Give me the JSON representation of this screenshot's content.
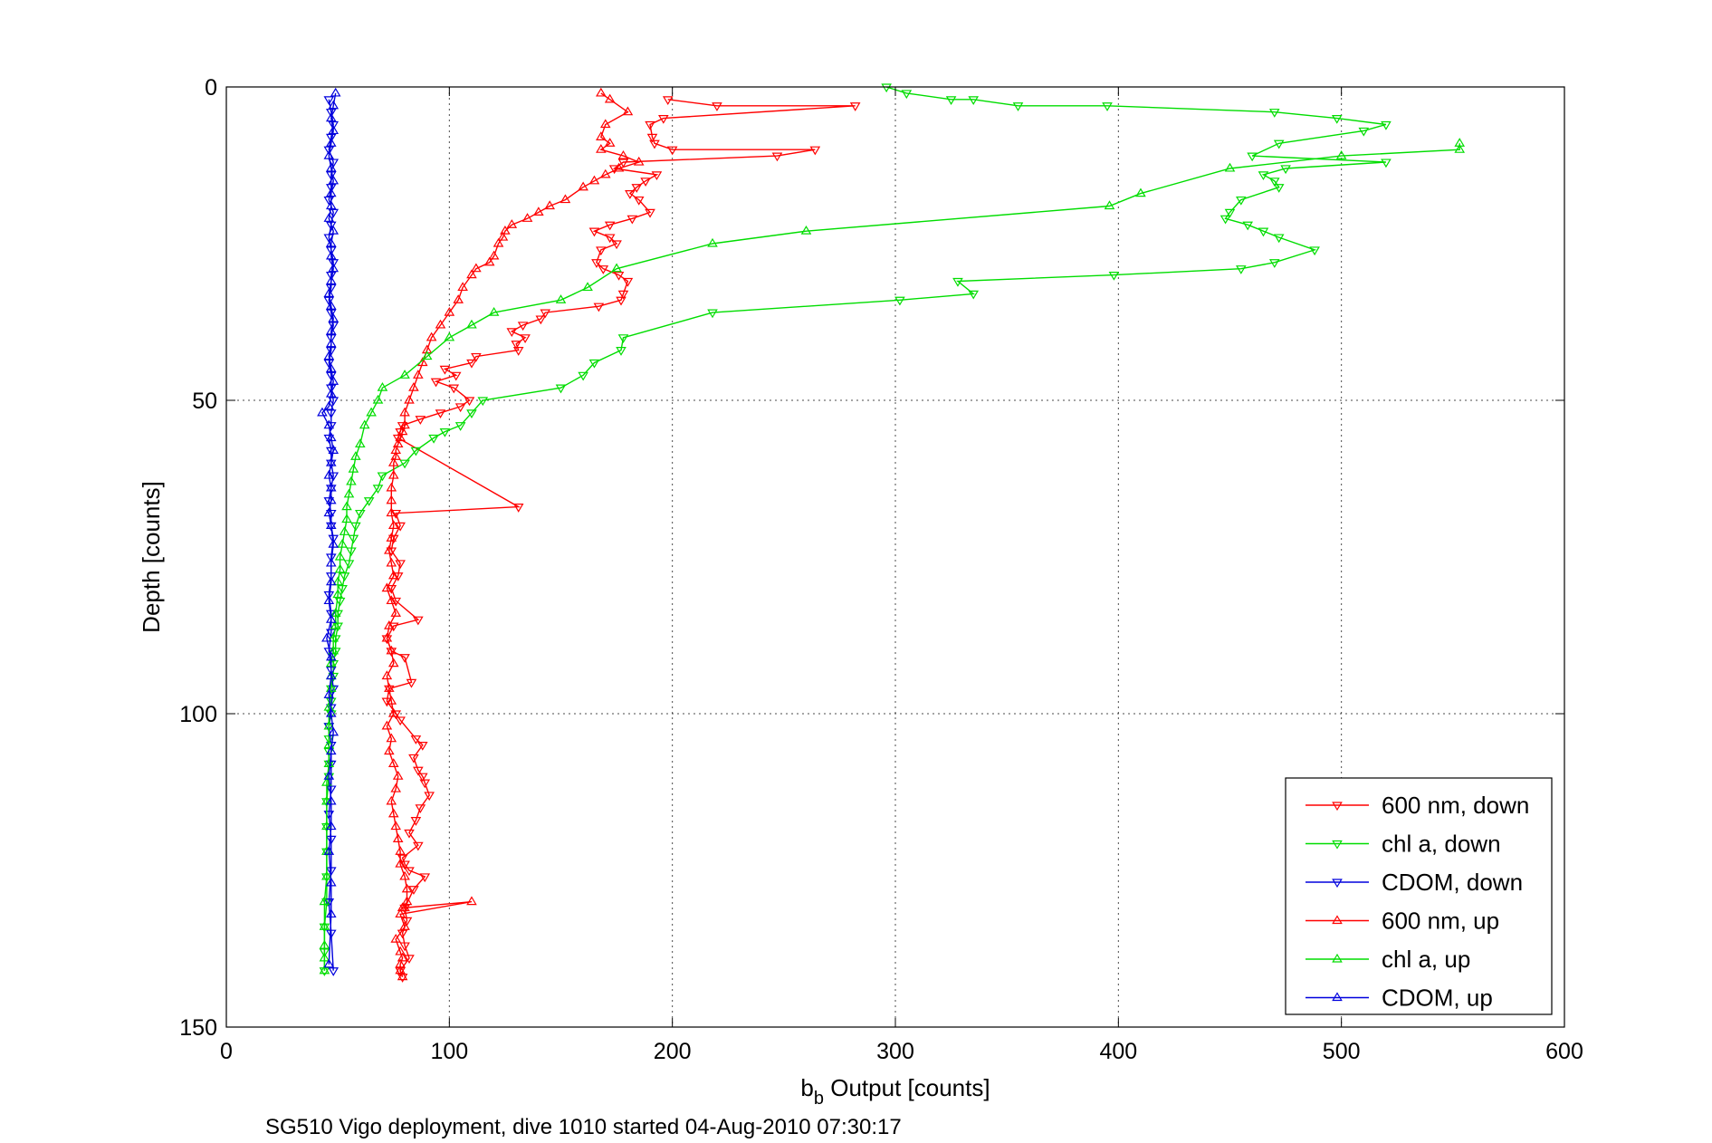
{
  "chart_data": {
    "type": "line",
    "xlabel_main": "b",
    "xlabel_sub": "b",
    "xlabel_rest": " Output [counts]",
    "ylabel": "Depth [counts]",
    "caption": "SG510 Vigo deployment, dive 1010 started 04-Aug-2010 07:30:17",
    "xlim": [
      0,
      600
    ],
    "ylim": [
      0,
      150
    ],
    "y_reversed": true,
    "grid": true,
    "xticks": [
      "0",
      "100",
      "200",
      "300",
      "400",
      "500",
      "600"
    ],
    "yticks": [
      "0",
      "50",
      "100",
      "150"
    ],
    "legend_position": "bottom-right",
    "series": [
      {
        "name": "600 nm, down",
        "color": "#ff0000",
        "marker": "triangle-down",
        "x": [
          198,
          220,
          282,
          196,
          190,
          191,
          192,
          200,
          264,
          247,
          178,
          174,
          193,
          188,
          184,
          181,
          185,
          190,
          182,
          172,
          165,
          172,
          175,
          168,
          166,
          169,
          176,
          180,
          178,
          177,
          167,
          143,
          141,
          133,
          128,
          134,
          130,
          131,
          112,
          110,
          98,
          103,
          94,
          102,
          109,
          105,
          96,
          87,
          79,
          78,
          77,
          131,
          76,
          78,
          75,
          74,
          78,
          77,
          74,
          76,
          86,
          75,
          72,
          74,
          80,
          83,
          73,
          72,
          76,
          78,
          85,
          88,
          84,
          86,
          88,
          89,
          91,
          87,
          85,
          82,
          86,
          79,
          80,
          82,
          89,
          84,
          80,
          81,
          79,
          80,
          82,
          78,
          79
        ],
        "y": [
          2,
          3,
          3,
          5,
          6,
          8,
          9,
          10,
          10,
          11,
          12,
          13,
          14,
          15,
          16,
          17,
          18,
          20,
          21,
          22,
          23,
          24,
          25,
          26,
          28,
          29,
          30,
          31,
          33,
          34,
          35,
          36,
          37,
          38,
          39,
          40,
          41,
          42,
          43,
          44,
          45,
          46,
          47,
          48,
          50,
          51,
          52,
          53,
          54,
          55,
          56,
          67,
          68,
          70,
          72,
          74,
          76,
          78,
          80,
          82,
          85,
          86,
          88,
          90,
          91,
          95,
          96,
          98,
          100,
          101,
          104,
          105,
          107,
          109,
          110,
          111,
          113,
          115,
          117,
          119,
          121,
          123,
          124,
          125,
          126,
          128,
          131,
          133,
          135,
          137,
          139,
          141,
          142
        ]
      },
      {
        "name": "chl a, down",
        "color": "#00dd00",
        "marker": "triangle-down",
        "x": [
          296,
          305,
          325,
          335,
          355,
          395,
          470,
          498,
          520,
          510,
          472,
          460,
          520,
          475,
          465,
          470,
          472,
          455,
          450,
          448,
          458,
          465,
          472,
          488,
          470,
          455,
          398,
          328,
          335,
          302,
          218,
          178,
          177,
          165,
          160,
          150,
          115,
          110,
          105,
          98,
          93,
          85,
          80,
          70,
          68,
          64,
          60,
          58,
          57,
          56,
          55,
          53,
          52,
          51,
          50,
          50,
          49,
          49,
          48,
          48,
          47,
          47,
          47,
          46,
          46,
          46,
          46,
          46,
          45,
          45,
          45,
          45,
          45,
          44,
          44,
          44
        ],
        "y": [
          0,
          1,
          2,
          2,
          3,
          3,
          4,
          5,
          6,
          7,
          9,
          11,
          12,
          13,
          14,
          15,
          16,
          18,
          20,
          21,
          22,
          23,
          24,
          26,
          28,
          29,
          30,
          31,
          33,
          34,
          36,
          40,
          42,
          44,
          46,
          48,
          50,
          52,
          54,
          55,
          56,
          58,
          60,
          62,
          64,
          66,
          68,
          70,
          72,
          74,
          76,
          78,
          80,
          82,
          84,
          86,
          88,
          90,
          92,
          94,
          96,
          98,
          100,
          102,
          104,
          106,
          108,
          110,
          114,
          118,
          122,
          126,
          130,
          134,
          138,
          141
        ]
      },
      {
        "name": "CDOM, down",
        "color": "#0000dd",
        "marker": "triangle-down",
        "x": [
          46,
          47,
          48,
          47,
          46,
          48,
          47,
          47,
          46,
          48,
          47,
          46,
          47,
          48,
          47,
          47,
          46,
          47,
          48,
          47,
          47,
          46,
          47,
          47,
          48,
          47,
          47,
          46,
          47,
          47,
          48,
          47,
          46,
          47,
          47,
          48,
          47,
          47,
          46,
          47,
          47,
          46,
          47,
          48,
          47,
          46,
          47,
          47,
          47,
          46,
          47,
          47,
          46,
          47,
          48
        ],
        "y": [
          2,
          4,
          6,
          8,
          10,
          12,
          14,
          16,
          18,
          20,
          22,
          24,
          26,
          28,
          30,
          32,
          34,
          36,
          38,
          40,
          42,
          44,
          46,
          48,
          50,
          52,
          54,
          56,
          58,
          60,
          62,
          64,
          66,
          68,
          70,
          72,
          75,
          78,
          81,
          84,
          87,
          90,
          93,
          96,
          99,
          102,
          105,
          108,
          112,
          116,
          120,
          125,
          130,
          135,
          141
        ]
      },
      {
        "name": "600 nm, up",
        "color": "#ff0000",
        "marker": "triangle-up",
        "x": [
          168,
          172,
          180,
          170,
          168,
          172,
          168,
          178,
          185,
          176,
          170,
          165,
          160,
          152,
          145,
          140,
          135,
          128,
          125,
          124,
          122,
          120,
          118,
          112,
          110,
          106,
          104,
          100,
          96,
          92,
          90,
          88,
          86,
          84,
          82,
          80,
          80,
          79,
          78,
          77,
          76,
          76,
          75,
          75,
          74,
          74,
          74,
          75,
          74,
          73,
          74,
          75,
          72,
          74,
          76,
          73,
          72,
          74,
          75,
          72,
          73,
          74,
          75,
          72,
          74,
          73,
          75,
          77,
          76,
          74,
          75,
          76,
          77,
          78,
          78,
          80,
          81,
          81,
          80,
          79,
          110,
          78,
          80,
          76,
          78,
          79,
          78,
          78,
          79
        ],
        "y": [
          1,
          2,
          4,
          6,
          8,
          9,
          10,
          11,
          12,
          13,
          14,
          15,
          16,
          18,
          19,
          20,
          21,
          22,
          23,
          24,
          25,
          27,
          28,
          29,
          30,
          32,
          34,
          36,
          38,
          40,
          42,
          44,
          46,
          48,
          50,
          52,
          54,
          55,
          56,
          57,
          58,
          59,
          60,
          62,
          64,
          66,
          68,
          70,
          72,
          74,
          76,
          78,
          80,
          82,
          84,
          86,
          88,
          90,
          92,
          94,
          96,
          98,
          100,
          102,
          104,
          106,
          108,
          110,
          112,
          114,
          116,
          118,
          120,
          122,
          124,
          126,
          128,
          130,
          131,
          131,
          130,
          132,
          134,
          136,
          138,
          139,
          140,
          141,
          142
        ]
      },
      {
        "name": "chl a, up",
        "color": "#00dd00",
        "marker": "triangle-up",
        "x": [
          553,
          553,
          500,
          450,
          410,
          396,
          260,
          218,
          175,
          162,
          150,
          120,
          110,
          100,
          90,
          80,
          70,
          68,
          65,
          62,
          60,
          58,
          57,
          56,
          55,
          54,
          54,
          53,
          52,
          51,
          51,
          50,
          50,
          49,
          49,
          48,
          48,
          47,
          47,
          47,
          46,
          46,
          46,
          46,
          45,
          45,
          45,
          45,
          45,
          44,
          44,
          44,
          44,
          44
        ],
        "y": [
          9,
          10,
          11,
          13,
          17,
          19,
          23,
          25,
          29,
          32,
          34,
          36,
          38,
          40,
          43,
          46,
          48,
          50,
          52,
          54,
          57,
          59,
          61,
          63,
          65,
          67,
          69,
          71,
          73,
          75,
          77,
          79,
          81,
          84,
          86,
          88,
          90,
          92,
          94,
          96,
          99,
          102,
          105,
          108,
          111,
          114,
          118,
          122,
          126,
          130,
          134,
          137,
          139,
          141
        ]
      },
      {
        "name": "CDOM, up",
        "color": "#0000dd",
        "marker": "triangle-up",
        "x": [
          49,
          48,
          47,
          48,
          47,
          46,
          47,
          48,
          47,
          47,
          46,
          48,
          47,
          47,
          48,
          47,
          46,
          47,
          48,
          47,
          47,
          46,
          47,
          48,
          47,
          46,
          43,
          46,
          47,
          48,
          47,
          46,
          47,
          47,
          46,
          47,
          48,
          47,
          47,
          46,
          47,
          45,
          47,
          47,
          46,
          47,
          48,
          47,
          46,
          47,
          47,
          46,
          47,
          47,
          46
        ],
        "y": [
          1,
          3,
          5,
          7,
          9,
          11,
          13,
          15,
          17,
          19,
          21,
          23,
          25,
          27,
          29,
          31,
          33,
          35,
          37,
          39,
          41,
          43,
          45,
          47,
          49,
          51,
          52,
          54,
          56,
          58,
          60,
          62,
          64,
          66,
          68,
          70,
          73,
          76,
          79,
          82,
          85,
          88,
          91,
          94,
          97,
          100,
          103,
          106,
          110,
          114,
          118,
          122,
          127,
          132,
          140
        ]
      }
    ]
  }
}
